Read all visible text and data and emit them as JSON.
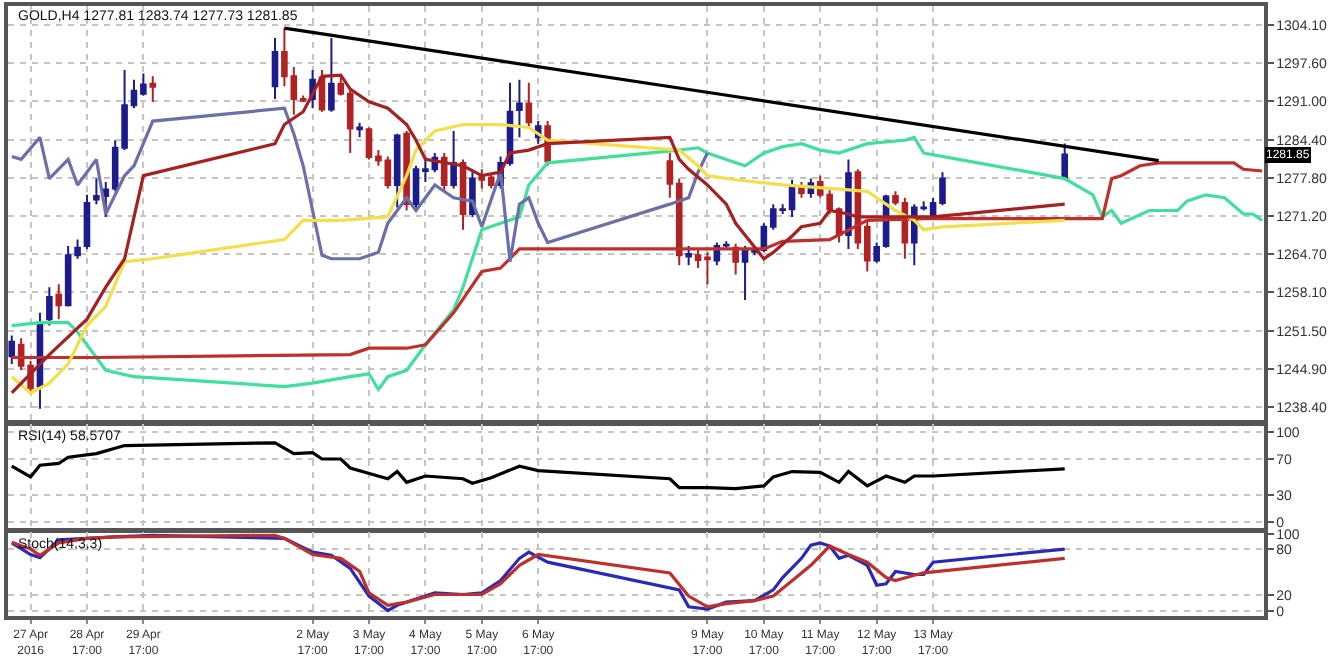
{
  "chart_data": [
    {
      "type": "candlestick",
      "title": "GOLD,H4 1277.81 1283.74 1277.73 1281.85",
      "grid": true,
      "tick_labels": "y",
      "xlim": [
        "2016-04-27T07:24",
        "2016-05-19T13:48"
      ],
      "xticks": [
        {
          "value": "2016-04-27T17:00",
          "label": null
        },
        {
          "value": "2016-04-28T17:00",
          "label": null
        },
        {
          "value": "2016-04-29T17:00",
          "label": null
        },
        {
          "value": "2016-05-02T17:00",
          "label": null
        },
        {
          "value": "2016-05-03T17:00",
          "label": null
        },
        {
          "value": "2016-05-04T17:00",
          "label": null
        },
        {
          "value": "2016-05-05T17:00",
          "label": null
        },
        {
          "value": "2016-05-06T17:00",
          "label": null
        },
        {
          "value": "2016-05-09T17:00",
          "label": null
        },
        {
          "value": "2016-05-10T17:00",
          "label": null
        },
        {
          "value": "2016-05-11T17:00",
          "label": null
        },
        {
          "value": "2016-05-12T17:00",
          "label": null
        },
        {
          "value": "2016-05-13T17:00",
          "label": null
        }
      ],
      "ylim": [
        1235.8,
        1307.4
      ],
      "yticks": [
        {
          "value": 1238.4,
          "label": "1238.40"
        },
        {
          "value": 1244.9,
          "label": "1244.90"
        },
        {
          "value": 1251.5,
          "label": "1251.50"
        },
        {
          "value": 1258.1,
          "label": "1258.10"
        },
        {
          "value": 1264.7,
          "label": "1264.70"
        },
        {
          "value": 1271.2,
          "label": "1271.20"
        },
        {
          "value": 1277.8,
          "label": "1277.80"
        },
        {
          "value": 1284.4,
          "label": "1284.40"
        },
        {
          "value": 1291.0,
          "label": "1291.00"
        },
        {
          "value": 1297.6,
          "label": "1297.60"
        },
        {
          "value": 1304.1,
          "label": "1304.10"
        }
      ],
      "annotations": [
        "1281.85"
      ],
      "x": [
        "2016-04-27T09:00",
        "2016-04-27T13:00",
        "2016-04-27T17:00",
        "2016-04-27T21:00",
        "2016-04-28T01:00",
        "2016-04-28T05:00",
        "2016-04-28T09:00",
        "2016-04-28T13:00",
        "2016-04-28T17:00",
        "2016-04-28T21:00",
        "2016-04-29T01:00",
        "2016-04-29T05:00",
        "2016-04-29T09:00",
        "2016-04-29T13:00",
        "2016-04-29T17:00",
        "2016-04-29T21:00",
        "2016-05-02T01:00",
        "2016-05-02T05:00",
        "2016-05-02T09:00",
        "2016-05-02T13:00",
        "2016-05-02T17:00",
        "2016-05-02T21:00",
        "2016-05-03T01:00",
        "2016-05-03T05:00",
        "2016-05-03T09:00",
        "2016-05-03T13:00",
        "2016-05-03T17:00",
        "2016-05-03T21:00",
        "2016-05-04T01:00",
        "2016-05-04T05:00",
        "2016-05-04T09:00",
        "2016-05-04T13:00",
        "2016-05-04T17:00",
        "2016-05-04T21:00",
        "2016-05-05T01:00",
        "2016-05-05T05:00",
        "2016-05-05T09:00",
        "2016-05-05T13:00",
        "2016-05-05T17:00",
        "2016-05-05T21:00",
        "2016-05-06T01:00",
        "2016-05-06T05:00",
        "2016-05-06T09:00",
        "2016-05-06T13:00",
        "2016-05-06T17:00",
        "2016-05-06T21:00",
        "2016-05-09T01:00",
        "2016-05-09T05:00",
        "2016-05-09T09:00",
        "2016-05-09T13:00",
        "2016-05-09T17:00",
        "2016-05-09T21:00",
        "2016-05-10T01:00",
        "2016-05-10T05:00",
        "2016-05-10T09:00",
        "2016-05-10T13:00",
        "2016-05-10T17:00",
        "2016-05-10T21:00",
        "2016-05-11T01:00",
        "2016-05-11T05:00",
        "2016-05-11T09:00",
        "2016-05-11T13:00",
        "2016-05-11T17:00",
        "2016-05-11T21:00",
        "2016-05-12T01:00",
        "2016-05-12T05:00",
        "2016-05-12T09:00",
        "2016-05-12T13:00",
        "2016-05-12T17:00",
        "2016-05-12T21:00",
        "2016-05-13T01:00",
        "2016-05-13T05:00",
        "2016-05-13T09:00",
        "2016-05-13T13:00",
        "2016-05-13T17:00",
        "2016-05-13T21:00",
        "2016-05-16T01:00"
      ],
      "ohlc": [
        [
          1247.1,
          1250.7,
          1245.8,
          1249.6
        ],
        [
          1249.1,
          1250.2,
          1244.7,
          1245.5
        ],
        [
          1245.5,
          1246.3,
          1240.8,
          1241.6
        ],
        [
          1241.9,
          1254.6,
          1238.1,
          1252.9
        ],
        [
          1253.5,
          1259.0,
          1252.4,
          1257.3
        ],
        [
          1257.7,
          1259.5,
          1253.5,
          1255.9
        ],
        [
          1255.9,
          1266.1,
          1255.7,
          1264.5
        ],
        [
          1264.5,
          1267.2,
          1263.9,
          1265.8
        ],
        [
          1266.1,
          1274.9,
          1265.6,
          1273.5
        ],
        [
          1274.1,
          1277.7,
          1273.3,
          1274.7
        ],
        [
          1274.7,
          1277.1,
          1271.1,
          1275.8
        ],
        [
          1276.0,
          1284.3,
          1275.5,
          1283.0
        ],
        [
          1283.0,
          1296.4,
          1282.6,
          1290.3
        ],
        [
          1290.3,
          1294.7,
          1289.8,
          1292.8
        ],
        [
          1292.3,
          1295.8,
          1292.0,
          1293.9
        ],
        [
          1294.0,
          1295.3,
          1290.9,
          1293.5
        ],
        [
          1293.6,
          1301.9,
          1291.4,
          1299.5
        ],
        [
          1299.5,
          1303.6,
          1293.6,
          1295.3
        ],
        [
          1295.3,
          1296.9,
          1288.7,
          1291.4
        ],
        [
          1291.4,
          1292.0,
          1290.9,
          1291.1
        ],
        [
          1291.4,
          1296.4,
          1289.8,
          1294.7
        ],
        [
          1295.1,
          1296.4,
          1289.2,
          1289.6
        ],
        [
          1289.6,
          1301.9,
          1289.2,
          1294.0
        ],
        [
          1294.0,
          1295.3,
          1292.0,
          1292.3
        ],
        [
          1292.3,
          1293.1,
          1282.1,
          1286.3
        ],
        [
          1286.2,
          1287.3,
          1284.8,
          1286.5
        ],
        [
          1286.2,
          1286.5,
          1281.0,
          1281.4
        ],
        [
          1281.5,
          1282.6,
          1279.9,
          1280.8
        ],
        [
          1280.8,
          1281.5,
          1276.0,
          1276.6
        ],
        [
          1276.6,
          1285.4,
          1272.7,
          1285.1
        ],
        [
          1285.4,
          1285.9,
          1272.2,
          1273.3
        ],
        [
          1273.3,
          1279.9,
          1272.2,
          1279.3
        ],
        [
          1279.0,
          1281.5,
          1277.1,
          1279.3
        ],
        [
          1279.3,
          1282.1,
          1278.8,
          1281.3
        ],
        [
          1281.3,
          1282.1,
          1275.5,
          1276.6
        ],
        [
          1276.6,
          1285.9,
          1276.0,
          1280.4
        ],
        [
          1280.4,
          1281.0,
          1268.9,
          1271.6
        ],
        [
          1271.6,
          1278.8,
          1271.1,
          1277.7
        ],
        [
          1278.2,
          1279.3,
          1276.0,
          1277.5
        ],
        [
          1277.9,
          1278.6,
          1276.0,
          1276.6
        ],
        [
          1276.6,
          1281.5,
          1276.0,
          1280.4
        ],
        [
          1280.4,
          1294.2,
          1279.9,
          1289.2
        ],
        [
          1289.5,
          1294.7,
          1284.8,
          1290.6
        ],
        [
          1290.6,
          1294.2,
          1286.5,
          1287.4
        ],
        [
          1284.8,
          1287.6,
          1283.7,
          1286.7
        ],
        [
          1286.7,
          1287.6,
          1279.9,
          1280.7
        ],
        [
          1280.7,
          1282.1,
          1274.4,
          1276.8
        ],
        [
          1276.8,
          1277.7,
          1262.8,
          1264.5
        ],
        [
          1264.3,
          1266.1,
          1262.8,
          1264.7
        ],
        [
          1264.5,
          1265.6,
          1262.3,
          1263.7
        ],
        [
          1264.1,
          1265.0,
          1259.5,
          1263.8
        ],
        [
          1263.6,
          1266.7,
          1262.8,
          1266.1
        ],
        [
          1266.2,
          1266.9,
          1265.8,
          1266.3
        ],
        [
          1265.8,
          1266.5,
          1261.2,
          1263.4
        ],
        [
          1263.4,
          1266.1,
          1256.8,
          1265.4
        ],
        [
          1265.1,
          1266.1,
          1264.5,
          1265.4
        ],
        [
          1265.4,
          1270.0,
          1265.0,
          1269.4
        ],
        [
          1269.4,
          1273.3,
          1268.9,
          1272.4
        ],
        [
          1272.3,
          1273.3,
          1271.6,
          1272.4
        ],
        [
          1272.4,
          1277.5,
          1271.1,
          1276.6
        ],
        [
          1276.4,
          1277.1,
          1274.4,
          1275.2
        ],
        [
          1275.2,
          1277.7,
          1274.4,
          1276.9
        ],
        [
          1277.1,
          1278.2,
          1274.4,
          1274.9
        ],
        [
          1274.9,
          1275.7,
          1271.6,
          1272.4
        ],
        [
          1272.4,
          1272.7,
          1266.7,
          1268.0
        ],
        [
          1268.0,
          1281.0,
          1265.6,
          1278.6
        ],
        [
          1278.8,
          1279.3,
          1265.6,
          1266.7
        ],
        [
          1269.4,
          1270.5,
          1261.7,
          1263.6
        ],
        [
          1263.6,
          1266.7,
          1263.2,
          1265.9
        ],
        [
          1266.1,
          1274.9,
          1265.8,
          1274.6
        ],
        [
          1274.7,
          1275.5,
          1273.1,
          1273.6
        ],
        [
          1273.5,
          1274.4,
          1263.9,
          1266.7
        ],
        [
          1266.7,
          1273.3,
          1262.8,
          1272.7
        ],
        [
          1272.6,
          1273.8,
          1272.2,
          1272.7
        ],
        [
          1271.4,
          1274.4,
          1271.1,
          1273.5
        ],
        [
          1273.5,
          1278.8,
          1273.1,
          1277.7
        ],
        [
          1277.81,
          1283.74,
          1277.73,
          1281.85
        ]
      ],
      "colors": [
        "#1c1c8c",
        "#b22222",
        "#b22222",
        "#1c1c8c",
        "#1c1c8c",
        "#b22222",
        "#1c1c8c",
        "#1c1c8c",
        "#1c1c8c",
        "#1c1c8c",
        "#1c1c8c",
        "#1c1c8c",
        "#1c1c8c",
        "#1c1c8c",
        "#1c1c8c",
        "#b22222",
        "#1c1c8c",
        "#b22222",
        "#b22222",
        "#b22222",
        "#1c1c8c",
        "#b22222",
        "#1c1c8c",
        "#b22222",
        "#b22222",
        "#1c1c8c",
        "#b22222",
        "#b22222",
        "#b22222",
        "#1c1c8c",
        "#b22222",
        "#1c1c8c",
        "#1c1c8c",
        "#1c1c8c",
        "#b22222",
        "#1c1c8c",
        "#b22222",
        "#1c1c8c",
        "#b22222",
        "#b22222",
        "#1c1c8c",
        "#1c1c8c",
        "#1c1c8c",
        "#b22222",
        "#1c1c8c",
        "#b22222",
        "#b22222",
        "#b22222",
        "#1c1c8c",
        "#b22222",
        "#b22222",
        "#1c1c8c",
        "#1c1c8c",
        "#b22222",
        "#1c1c8c",
        "#1c1c8c",
        "#1c1c8c",
        "#1c1c8c",
        "#1c1c8c",
        "#1c1c8c",
        "#b22222",
        "#1c1c8c",
        "#b22222",
        "#b22222",
        "#b22222",
        "#1c1c8c",
        "#b22222",
        "#b22222",
        "#1c1c8c",
        "#1c1c8c",
        "#b22222",
        "#b22222",
        "#1c1c8c",
        "#1c1c8c",
        "#1c1c8c",
        "#1c1c8c",
        "#1c1c8c"
      ],
      "series": [
        {
          "type": "line",
          "color": "#3fe09a",
          "x": [
            "2016-04-27T09:00",
            "2016-04-27T21:00",
            "2016-04-28T09:00",
            "2016-04-28T13:00",
            "2016-04-29T01:00",
            "2016-04-29T13:00",
            "2016-05-02T05:00",
            "2016-05-02T17:00",
            "2016-05-03T09:00",
            "2016-05-03T17:00",
            "2016-05-03T21:00",
            "2016-05-04T01:00",
            "2016-05-04T09:00",
            "2016-05-04T17:00",
            "2016-05-05T05:00",
            "2016-05-05T09:00",
            "2016-05-05T17:00",
            "2016-05-06T01:00",
            "2016-05-06T09:00",
            "2016-05-06T13:00",
            "2016-05-06T21:00",
            "2016-05-09T05:00",
            "2016-05-09T13:00",
            "2016-05-09T17:00",
            "2016-05-10T01:00",
            "2016-05-10T09:00",
            "2016-05-10T17:00",
            "2016-05-11T01:00",
            "2016-05-11T09:00",
            "2016-05-11T17:00",
            "2016-05-12T01:00",
            "2016-05-12T13:00",
            "2016-05-13T05:00",
            "2016-05-13T09:00",
            "2016-05-13T13:00",
            "2016-05-16T01:00",
            "2016-05-16T13:00",
            "2016-05-16T17:00",
            "2016-05-16T21:00",
            "2016-05-17T01:00",
            "2016-05-17T13:00",
            "2016-05-18T01:00",
            "2016-05-18T05:00",
            "2016-05-18T13:00",
            "2016-05-18T21:00",
            "2016-05-19T05:00",
            "2016-05-19T09:00",
            "2016-05-19T13:00"
          ],
          "values": [
            1252.4,
            1252.9,
            1252.9,
            1251.3,
            1244.7,
            1243.6,
            1241.9,
            1242.5,
            1243.6,
            1244.1,
            1241.4,
            1243.6,
            1244.7,
            1249.1,
            1255.1,
            1259.0,
            1268.9,
            1270.0,
            1271.1,
            1276.6,
            1280.4,
            1282.6,
            1283.0,
            1282.1,
            1281.0,
            1279.9,
            1282.1,
            1283.2,
            1283.7,
            1282.6,
            1282.1,
            1283.7,
            1284.3,
            1284.8,
            1282.1,
            1277.7,
            1274.9,
            1271.1,
            1272.2,
            1270.0,
            1272.2,
            1272.2,
            1273.8,
            1274.9,
            1274.4,
            1271.6,
            1271.6,
            1270.5
          ]
        },
        {
          "type": "line",
          "color": "#c0302b",
          "x": [
            "2016-04-27T09:00",
            "2016-04-27T21:00",
            "2016-04-28T21:00",
            "2016-05-03T09:00",
            "2016-05-03T17:00",
            "2016-05-04T09:00",
            "2016-05-04T17:00",
            "2016-05-05T05:00",
            "2016-05-05T17:00",
            "2016-05-06T01:00",
            "2016-05-06T09:00",
            "2016-05-06T21:00",
            "2016-05-09T17:00",
            "2016-05-10T17:00",
            "2016-05-11T01:00",
            "2016-05-11T21:00",
            "2016-05-12T13:00",
            "2016-05-13T13:00",
            "2016-05-16T17:00",
            "2016-05-16T21:00",
            "2016-05-17T01:00",
            "2016-05-17T09:00",
            "2016-05-17T17:00",
            "2016-05-19T01:00",
            "2016-05-19T05:00",
            "2016-05-19T13:00"
          ],
          "values": [
            1246.9,
            1246.9,
            1246.9,
            1247.4,
            1248.5,
            1248.5,
            1249.1,
            1254.6,
            1261.7,
            1262.3,
            1265.6,
            1265.6,
            1265.6,
            1265.6,
            1266.9,
            1267.2,
            1270.5,
            1270.8,
            1270.8,
            1277.7,
            1278.2,
            1279.9,
            1280.4,
            1280.4,
            1279.3,
            1279.0
          ]
        },
        {
          "type": "line",
          "color": "#6b70a8",
          "x": [
            "2016-04-27T09:00",
            "2016-04-27T13:00",
            "2016-04-27T21:00",
            "2016-04-28T01:00",
            "2016-04-28T09:00",
            "2016-04-28T13:00",
            "2016-04-28T21:00",
            "2016-04-29T01:00",
            "2016-04-29T09:00",
            "2016-04-29T13:00",
            "2016-04-29T21:00",
            "2016-05-02T05:00",
            "2016-05-02T09:00",
            "2016-05-02T13:00",
            "2016-05-02T21:00",
            "2016-05-03T01:00",
            "2016-05-03T09:00",
            "2016-05-03T13:00",
            "2016-05-03T21:00",
            "2016-05-04T01:00",
            "2016-05-04T09:00",
            "2016-05-04T13:00",
            "2016-05-04T21:00",
            "2016-05-05T05:00",
            "2016-05-05T13:00",
            "2016-05-05T17:00",
            "2016-05-06T01:00",
            "2016-05-06T05:00",
            "2016-05-06T09:00",
            "2016-05-06T13:00",
            "2016-05-06T17:00",
            "2016-05-06T21:00",
            "2016-05-09T01:00",
            "2016-05-09T09:00",
            "2016-05-09T13:00",
            "2016-05-09T17:00"
          ],
          "values": [
            1281.5,
            1281.0,
            1284.8,
            1277.7,
            1281.0,
            1276.6,
            1281.0,
            1271.6,
            1278.2,
            1279.9,
            1287.6,
            1289.8,
            1285.4,
            1279.9,
            1264.5,
            1263.9,
            1263.9,
            1263.9,
            1265.0,
            1270.0,
            1274.4,
            1272.2,
            1276.6,
            1274.4,
            1273.8,
            1269.4,
            1278.8,
            1263.4,
            1273.3,
            1274.4,
            1270.0,
            1266.7,
            1273.3,
            1274.4,
            1278.8,
            1282.1
          ]
        },
        {
          "type": "line",
          "color": "#f2e04a",
          "x": [
            "2016-04-27T09:00",
            "2016-04-27T17:00",
            "2016-04-28T01:00",
            "2016-04-28T09:00",
            "2016-04-28T17:00",
            "2016-04-29T01:00",
            "2016-04-29T09:00",
            "2016-04-29T21:00",
            "2016-05-02T05:00",
            "2016-05-02T13:00",
            "2016-05-03T05:00",
            "2016-05-04T01:00",
            "2016-05-04T09:00",
            "2016-05-04T13:00",
            "2016-05-04T21:00",
            "2016-05-05T09:00",
            "2016-05-06T01:00",
            "2016-05-06T13:00",
            "2016-05-06T21:00",
            "2016-05-09T05:00",
            "2016-05-09T13:00",
            "2016-05-09T17:00",
            "2016-05-10T05:00",
            "2016-05-11T01:00",
            "2016-05-11T21:00",
            "2016-05-12T13:00",
            "2016-05-13T01:00",
            "2016-05-13T09:00",
            "2016-05-13T13:00",
            "2016-05-13T21:00",
            "2016-05-16T01:00"
          ],
          "values": [
            1243.6,
            1240.8,
            1242.5,
            1245.8,
            1252.4,
            1255.7,
            1263.4,
            1263.9,
            1267.2,
            1270.5,
            1270.5,
            1271.1,
            1278.2,
            1282.6,
            1285.9,
            1287.0,
            1287.0,
            1286.5,
            1284.3,
            1282.6,
            1279.9,
            1278.2,
            1277.5,
            1276.6,
            1276.0,
            1275.5,
            1272.2,
            1270.5,
            1268.9,
            1269.4,
            1270.5
          ]
        },
        {
          "type": "line",
          "color": "#a52020",
          "x": [
            "2016-04-27T09:00",
            "2016-04-28T01:00",
            "2016-04-28T17:00",
            "2016-04-29T01:00",
            "2016-04-29T09:00",
            "2016-04-29T17:00",
            "2016-05-02T01:00",
            "2016-05-02T05:00",
            "2016-05-02T13:00",
            "2016-05-02T21:00",
            "2016-05-03T05:00",
            "2016-05-03T09:00",
            "2016-05-03T17:00",
            "2016-05-04T01:00",
            "2016-05-04T09:00",
            "2016-05-04T13:00",
            "2016-05-04T17:00",
            "2016-05-05T09:00",
            "2016-05-05T17:00",
            "2016-05-06T01:00",
            "2016-05-06T05:00",
            "2016-05-06T13:00",
            "2016-05-06T21:00",
            "2016-05-09T01:00",
            "2016-05-09T05:00",
            "2016-05-09T09:00",
            "2016-05-09T17:00",
            "2016-05-10T01:00",
            "2016-05-10T05:00",
            "2016-05-10T17:00",
            "2016-05-10T21:00",
            "2016-05-11T05:00",
            "2016-05-11T09:00",
            "2016-05-11T17:00",
            "2016-05-11T21:00",
            "2016-05-12T05:00",
            "2016-05-12T09:00",
            "2016-05-12T17:00",
            "2016-05-13T05:00",
            "2016-05-13T17:00",
            "2016-05-16T01:00"
          ],
          "values": [
            1240.8,
            1247.4,
            1253.5,
            1259.0,
            1263.9,
            1278.2,
            1283.7,
            1287.0,
            1289.2,
            1295.3,
            1295.5,
            1293.1,
            1290.9,
            1289.8,
            1287.0,
            1284.3,
            1281.0,
            1279.9,
            1278.2,
            1278.8,
            1282.1,
            1282.6,
            1283.7,
            1284.8,
            1281.0,
            1279.3,
            1276.6,
            1273.3,
            1270.0,
            1263.9,
            1265.0,
            1267.8,
            1269.4,
            1270.0,
            1272.2,
            1271.6,
            1271.1,
            1271.1,
            1271.1,
            1271.1,
            1273.3
          ]
        },
        {
          "type": "line",
          "color": "#000000",
          "x": [
            "2016-05-02T05:00",
            "2016-05-09T21:00",
            "2016-05-17T17:00"
          ],
          "values": [
            1303.6,
            1292.3,
            1280.8
          ]
        }
      ]
    },
    {
      "type": "line",
      "title": "RSI(14) 58.5707",
      "grid": true,
      "tick_labels": "y",
      "xlim": [
        "2016-04-27T07:24",
        "2016-05-19T13:48"
      ],
      "xticks": [
        {
          "value": "2016-04-27T17:00",
          "label": null
        },
        {
          "value": "2016-04-28T17:00",
          "label": null
        },
        {
          "value": "2016-04-29T17:00",
          "label": null
        },
        {
          "value": "2016-05-02T17:00",
          "label": null
        },
        {
          "value": "2016-05-03T17:00",
          "label": null
        },
        {
          "value": "2016-05-04T17:00",
          "label": null
        },
        {
          "value": "2016-05-05T17:00",
          "label": null
        },
        {
          "value": "2016-05-06T17:00",
          "label": null
        },
        {
          "value": "2016-05-09T17:00",
          "label": null
        },
        {
          "value": "2016-05-10T17:00",
          "label": null
        },
        {
          "value": "2016-05-11T17:00",
          "label": null
        },
        {
          "value": "2016-05-12T17:00",
          "label": null
        },
        {
          "value": "2016-05-13T17:00",
          "label": null
        }
      ],
      "ylim": [
        -8.5,
        108.5
      ],
      "yticks": [
        0,
        30,
        70,
        100
      ],
      "series": [
        {
          "color": "#000000",
          "x": [
            "2016-04-27T09:00",
            "2016-04-27T17:00",
            "2016-04-27T21:00",
            "2016-04-28T05:00",
            "2016-04-28T09:00",
            "2016-04-28T21:00",
            "2016-04-29T09:00",
            "2016-05-02T01:00",
            "2016-05-02T09:00",
            "2016-05-02T17:00",
            "2016-05-02T21:00",
            "2016-05-03T05:00",
            "2016-05-03T09:00",
            "2016-05-04T01:00",
            "2016-05-04T05:00",
            "2016-05-04T09:00",
            "2016-05-04T17:00",
            "2016-05-05T09:00",
            "2016-05-05T13:00",
            "2016-05-05T21:00",
            "2016-05-06T09:00",
            "2016-05-06T17:00",
            "2016-05-09T01:00",
            "2016-05-09T05:00",
            "2016-05-09T17:00",
            "2016-05-10T05:00",
            "2016-05-10T17:00",
            "2016-05-10T21:00",
            "2016-05-11T01:00",
            "2016-05-11T05:00",
            "2016-05-11T17:00",
            "2016-05-12T01:00",
            "2016-05-12T05:00",
            "2016-05-12T13:00",
            "2016-05-12T21:00",
            "2016-05-13T05:00",
            "2016-05-13T09:00",
            "2016-05-13T17:00",
            "2016-05-16T01:00"
          ],
          "values": [
            62,
            50,
            63,
            65,
            72,
            76,
            85,
            88,
            76,
            77,
            70,
            70,
            60,
            48,
            56,
            44,
            51,
            48,
            43,
            49,
            62,
            57,
            48,
            38,
            38,
            37,
            40,
            50,
            53,
            56,
            55,
            44,
            56,
            40,
            51,
            44,
            51,
            51,
            59
          ]
        }
      ]
    },
    {
      "type": "line",
      "title": "Stoch(14,3,3)",
      "grid": true,
      "xlim": [
        "2016-04-27T07:24",
        "2016-05-19T13:48"
      ],
      "xticks": [
        {
          "value": "2016-04-27T17:00",
          "label": "27 Apr 2016"
        },
        {
          "value": "2016-04-28T17:00",
          "label": "28 Apr 17:00"
        },
        {
          "value": "2016-04-29T17:00",
          "label": "29 Apr 17:00"
        },
        {
          "value": "2016-05-02T17:00",
          "label": "2 May 17:00"
        },
        {
          "value": "2016-05-03T17:00",
          "label": "3 May 17:00"
        },
        {
          "value": "2016-05-04T17:00",
          "label": "4 May 17:00"
        },
        {
          "value": "2016-05-05T17:00",
          "label": "5 May 17:00"
        },
        {
          "value": "2016-05-06T17:00",
          "label": "6 May 17:00"
        },
        {
          "value": "2016-05-09T17:00",
          "label": "9 May 17:00"
        },
        {
          "value": "2016-05-10T17:00",
          "label": "10 May 17:00"
        },
        {
          "value": "2016-05-11T17:00",
          "label": "11 May 17:00"
        },
        {
          "value": "2016-05-12T17:00",
          "label": "12 May 17:00"
        },
        {
          "value": "2016-05-13T17:00",
          "label": "13 May 17:00"
        }
      ],
      "ylim": [
        -7,
        102.5
      ],
      "yticks": [
        0,
        20,
        80,
        100
      ],
      "series": [
        {
          "color": "#2a2ab8",
          "x": [
            "2016-04-27T09:00",
            "2016-04-27T17:00",
            "2016-04-27T21:00",
            "2016-04-28T05:00",
            "2016-04-28T17:00",
            "2016-04-29T05:00",
            "2016-04-29T21:00",
            "2016-05-02T05:00",
            "2016-05-02T17:00",
            "2016-05-03T01:00",
            "2016-05-03T09:00",
            "2016-05-03T17:00",
            "2016-05-04T01:00",
            "2016-05-04T05:00",
            "2016-05-04T13:00",
            "2016-05-04T21:00",
            "2016-05-05T09:00",
            "2016-05-05T17:00",
            "2016-05-06T01:00",
            "2016-05-06T09:00",
            "2016-05-06T13:00",
            "2016-05-06T21:00",
            "2016-05-09T05:00",
            "2016-05-09T09:00",
            "2016-05-09T17:00",
            "2016-05-10T01:00",
            "2016-05-10T13:00",
            "2016-05-10T21:00",
            "2016-05-11T01:00",
            "2016-05-11T09:00",
            "2016-05-11T13:00",
            "2016-05-11T17:00",
            "2016-05-11T21:00",
            "2016-05-12T01:00",
            "2016-05-12T05:00",
            "2016-05-12T13:00",
            "2016-05-12T17:00",
            "2016-05-12T21:00",
            "2016-05-13T01:00",
            "2016-05-13T09:00",
            "2016-05-13T13:00",
            "2016-05-13T17:00",
            "2016-05-16T01:00"
          ],
          "values": [
            88,
            73,
            69,
            92,
            94,
            96,
            98,
            94,
            76,
            72,
            55,
            19,
            0,
            7,
            15,
            23,
            21,
            23,
            39,
            68,
            76,
            63,
            27,
            5,
            2,
            11,
            13,
            27,
            43,
            68,
            85,
            88,
            84,
            68,
            72,
            59,
            33,
            35,
            51,
            47,
            47,
            63,
            80
          ]
        },
        {
          "color": "#c0302b",
          "x": [
            "2016-04-27T09:00",
            "2016-04-27T17:00",
            "2016-04-27T21:00",
            "2016-04-28T05:00",
            "2016-04-28T17:00",
            "2016-04-29T05:00",
            "2016-05-02T01:00",
            "2016-05-02T05:00",
            "2016-05-02T17:00",
            "2016-05-03T05:00",
            "2016-05-03T13:00",
            "2016-05-03T17:00",
            "2016-05-04T01:00",
            "2016-05-04T09:00",
            "2016-05-04T21:00",
            "2016-05-05T17:00",
            "2016-05-06T01:00",
            "2016-05-06T09:00",
            "2016-05-06T17:00",
            "2016-05-09T01:00",
            "2016-05-09T09:00",
            "2016-05-09T17:00",
            "2016-05-10T01:00",
            "2016-05-10T13:00",
            "2016-05-10T21:00",
            "2016-05-11T05:00",
            "2016-05-11T13:00",
            "2016-05-11T21:00",
            "2016-05-12T05:00",
            "2016-05-12T13:00",
            "2016-05-12T21:00",
            "2016-05-13T01:00",
            "2016-05-13T09:00",
            "2016-05-13T13:00",
            "2016-05-16T01:00"
          ],
          "values": [
            89,
            80,
            72,
            88,
            94,
            96,
            98,
            94,
            73,
            68,
            51,
            23,
            7,
            11,
            21,
            21,
            35,
            59,
            73,
            49,
            19,
            5,
            9,
            13,
            19,
            39,
            59,
            84,
            73,
            63,
            43,
            39,
            46,
            49,
            68
          ]
        }
      ]
    }
  ]
}
